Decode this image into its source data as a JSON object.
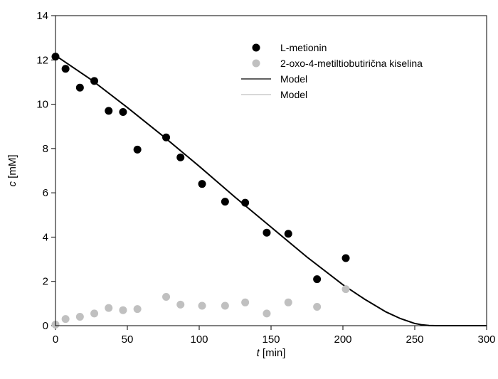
{
  "chart_data": {
    "type": "scatter",
    "xlabel_symbol": "t",
    "xlabel_unit": " [min]",
    "ylabel_symbol": "c",
    "ylabel_unit": " [mM]",
    "xlim": [
      0,
      300
    ],
    "ylim": [
      0,
      14
    ],
    "xticks": [
      0,
      50,
      100,
      150,
      200,
      250,
      300
    ],
    "yticks": [
      0,
      2,
      4,
      6,
      8,
      10,
      12,
      14
    ],
    "grid": false,
    "legend_position": "top-right",
    "series": [
      {
        "name": "L-metionin",
        "kind": "points",
        "color": "#000000",
        "x": [
          0,
          7,
          17,
          27,
          37,
          47,
          57,
          77,
          87,
          102,
          118,
          132,
          147,
          162,
          182,
          202
        ],
        "y": [
          12.15,
          11.6,
          10.75,
          11.05,
          9.7,
          9.65,
          7.95,
          8.5,
          7.6,
          6.4,
          5.6,
          5.55,
          4.2,
          4.15,
          2.1,
          3.05
        ]
      },
      {
        "name": "2-oxo-4-metiltiobutirična kiselina",
        "kind": "points",
        "color": "#c0c0c0",
        "x": [
          0,
          7,
          17,
          27,
          37,
          47,
          57,
          77,
          87,
          102,
          118,
          132,
          147,
          162,
          182,
          202
        ],
        "y": [
          0.05,
          0.3,
          0.4,
          0.55,
          0.8,
          0.7,
          0.75,
          1.3,
          0.95,
          0.9,
          0.9,
          1.05,
          0.55,
          1.05,
          0.85,
          1.65
        ]
      },
      {
        "name": "Model",
        "kind": "line",
        "color": "#000000",
        "x": [
          0,
          25,
          50,
          75,
          100,
          125,
          150,
          175,
          200,
          215,
          230,
          240,
          250,
          255,
          260,
          265,
          270,
          275,
          280,
          290,
          300
        ],
        "y": [
          12.2,
          11.1,
          9.85,
          8.55,
          7.2,
          5.8,
          4.45,
          3.1,
          1.85,
          1.2,
          0.62,
          0.32,
          0.1,
          0.04,
          0.01,
          0.0,
          0.0,
          0.0,
          0.0,
          0.0,
          0.0
        ]
      },
      {
        "name": "Model",
        "kind": "line",
        "color": "#c0c0c0",
        "x": [],
        "y": []
      }
    ]
  }
}
